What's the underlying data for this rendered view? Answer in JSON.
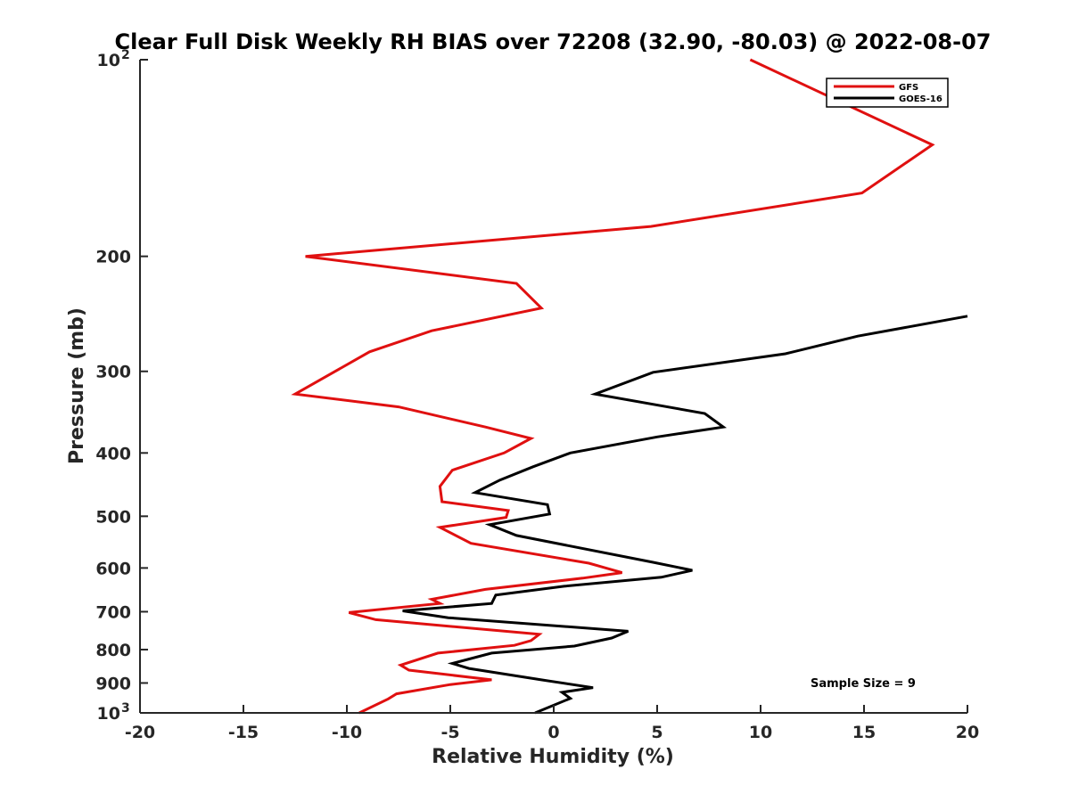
{
  "chart_data": {
    "type": "line",
    "title": "Clear Full Disk Weekly RH BIAS over 72208 (32.90, -80.03) @ 2022-08-07",
    "xlabel": "Relative Humidity (%)",
    "ylabel": "Pressure (mb)",
    "xlim": [
      -20,
      20
    ],
    "ylim": [
      100,
      1000
    ],
    "y_scale": "log",
    "y_reversed": true,
    "grid": false,
    "legend_position": "top-right",
    "x_ticks": [
      -20,
      -15,
      -10,
      -5,
      0,
      5,
      10,
      15,
      20
    ],
    "x_tick_labels": [
      "-20",
      "-15",
      "-10",
      "-5",
      "0",
      "5",
      "10",
      "15",
      "20"
    ],
    "y_ticks": [
      100,
      200,
      300,
      400,
      500,
      600,
      700,
      800,
      900,
      1000
    ],
    "y_tick_labels": [
      "10²",
      "200",
      "300",
      "400",
      "500",
      "600",
      "700",
      "800",
      "900",
      "10³"
    ],
    "annotation": "Sample Size = 9",
    "series": [
      {
        "name": "GFS",
        "color": "#e01010",
        "points": [
          [
            9.5,
            100
          ],
          [
            18.3,
            135
          ],
          [
            14.9,
            160
          ],
          [
            4.7,
            180
          ],
          [
            -12.0,
            200
          ],
          [
            -1.8,
            220
          ],
          [
            -0.6,
            240
          ],
          [
            -5.9,
            260
          ],
          [
            -8.9,
            280
          ],
          [
            -12.5,
            325
          ],
          [
            -7.5,
            340
          ],
          [
            -3.3,
            365
          ],
          [
            -1.1,
            380
          ],
          [
            -2.4,
            400
          ],
          [
            -4.9,
            425
          ],
          [
            -5.5,
            450
          ],
          [
            -5.4,
            475
          ],
          [
            -2.2,
            490
          ],
          [
            -2.3,
            502
          ],
          [
            -5.5,
            520
          ],
          [
            -4.0,
            550
          ],
          [
            1.7,
            590
          ],
          [
            3.3,
            610
          ],
          [
            1.4,
            622
          ],
          [
            -3.3,
            647
          ],
          [
            -5.9,
            670
          ],
          [
            -5.5,
            680
          ],
          [
            -9.9,
            702
          ],
          [
            -8.6,
            720
          ],
          [
            -0.7,
            758
          ],
          [
            -1.1,
            775
          ],
          [
            -1.9,
            788
          ],
          [
            -5.6,
            810
          ],
          [
            -7.4,
            845
          ],
          [
            -7.0,
            860
          ],
          [
            -3.0,
            890
          ],
          [
            -5.0,
            905
          ],
          [
            -7.6,
            935
          ],
          [
            -8.0,
            952
          ],
          [
            -9.4,
            1000
          ]
        ]
      },
      {
        "name": "GOES-16",
        "color": "#000000",
        "points": [
          [
            20.0,
            247
          ],
          [
            14.7,
            265
          ],
          [
            11.2,
            282
          ],
          [
            4.8,
            301
          ],
          [
            2.0,
            325
          ],
          [
            7.3,
            348
          ],
          [
            8.2,
            365
          ],
          [
            5.0,
            378
          ],
          [
            0.8,
            400
          ],
          [
            -1.0,
            420
          ],
          [
            -2.6,
            440
          ],
          [
            -3.8,
            460
          ],
          [
            -0.3,
            480
          ],
          [
            -0.2,
            496
          ],
          [
            -3.1,
            515
          ],
          [
            -1.8,
            535
          ],
          [
            4.8,
            588
          ],
          [
            6.7,
            605
          ],
          [
            5.2,
            620
          ],
          [
            0.5,
            640
          ],
          [
            -2.8,
            660
          ],
          [
            -3.0,
            680
          ],
          [
            -7.3,
            698
          ],
          [
            -5.1,
            715
          ],
          [
            3.6,
            750
          ],
          [
            2.8,
            768
          ],
          [
            1.0,
            790
          ],
          [
            -3.0,
            810
          ],
          [
            -4.9,
            840
          ],
          [
            -4.1,
            855
          ],
          [
            -0.6,
            890
          ],
          [
            1.9,
            915
          ],
          [
            0.4,
            930
          ],
          [
            0.8,
            950
          ],
          [
            -0.9,
            1000
          ]
        ]
      }
    ]
  }
}
